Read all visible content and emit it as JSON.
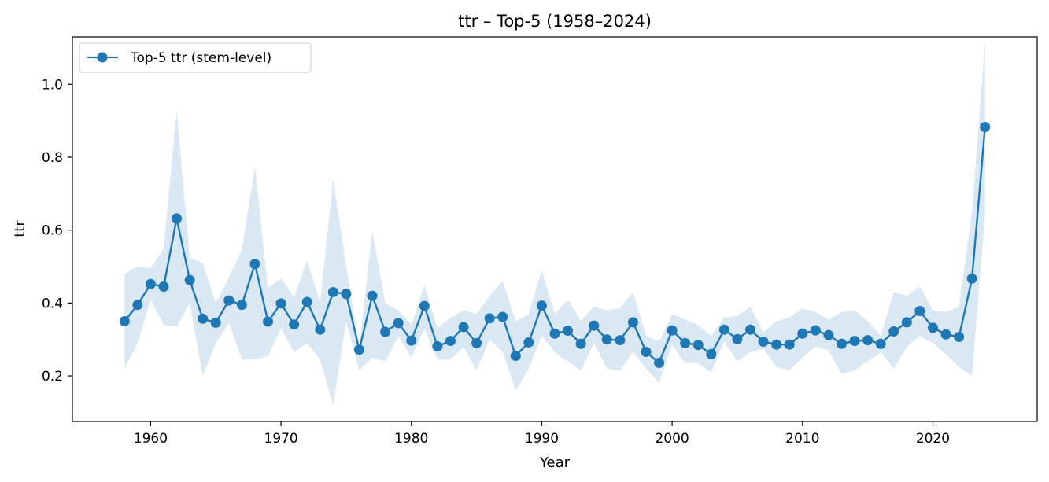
{
  "chart_data": {
    "type": "line",
    "title": "ttr – Top-5 (1958–2024)",
    "xlabel": "Year",
    "ylabel": "ttr",
    "xlim": [
      1954,
      2028
    ],
    "ylim": [
      0.075,
      1.13
    ],
    "xticks": [
      1960,
      1970,
      1980,
      1990,
      2000,
      2010,
      2020
    ],
    "yticks": [
      0.2,
      0.4,
      0.6,
      0.8,
      1.0
    ],
    "xtick_labels": [
      "1960",
      "1970",
      "1980",
      "1990",
      "2000",
      "2010",
      "2020"
    ],
    "ytick_labels": [
      "0.2",
      "0.4",
      "0.6",
      "0.8",
      "1.0"
    ],
    "grid": false,
    "legend_position": "top-left",
    "line_color": "#1f77b4",
    "band_color": "#1f77b4",
    "series": [
      {
        "name": "Top-5 ttr (stem-level)",
        "x": [
          1958,
          1959,
          1960,
          1961,
          1962,
          1963,
          1964,
          1965,
          1966,
          1967,
          1968,
          1969,
          1970,
          1971,
          1972,
          1973,
          1974,
          1975,
          1976,
          1977,
          1978,
          1979,
          1980,
          1981,
          1982,
          1983,
          1984,
          1985,
          1986,
          1987,
          1988,
          1989,
          1990,
          1991,
          1992,
          1993,
          1994,
          1995,
          1996,
          1997,
          1998,
          1999,
          2000,
          2001,
          2002,
          2003,
          2004,
          2005,
          2006,
          2007,
          2008,
          2009,
          2010,
          2011,
          2012,
          2013,
          2014,
          2015,
          2016,
          2017,
          2018,
          2019,
          2020,
          2021,
          2022,
          2023,
          2024
        ],
        "y": [
          0.35,
          0.395,
          0.452,
          0.445,
          0.632,
          0.463,
          0.357,
          0.346,
          0.407,
          0.395,
          0.507,
          0.349,
          0.399,
          0.341,
          0.403,
          0.327,
          0.43,
          0.425,
          0.272,
          0.42,
          0.321,
          0.345,
          0.297,
          0.392,
          0.281,
          0.296,
          0.334,
          0.29,
          0.358,
          0.362,
          0.255,
          0.292,
          0.393,
          0.316,
          0.324,
          0.288,
          0.338,
          0.3,
          0.298,
          0.347,
          0.266,
          0.236,
          0.325,
          0.29,
          0.285,
          0.26,
          0.327,
          0.301,
          0.327,
          0.294,
          0.286,
          0.286,
          0.316,
          0.325,
          0.312,
          0.288,
          0.296,
          0.298,
          0.288,
          0.322,
          0.347,
          0.378,
          0.332,
          0.314,
          0.307,
          0.467,
          0.883
        ],
        "upper": [
          0.48,
          0.5,
          0.495,
          0.55,
          0.93,
          0.525,
          0.51,
          0.4,
          0.47,
          0.545,
          0.775,
          0.44,
          0.468,
          0.415,
          0.518,
          0.4,
          0.74,
          0.5,
          0.28,
          0.595,
          0.4,
          0.38,
          0.34,
          0.45,
          0.33,
          0.36,
          0.38,
          0.37,
          0.42,
          0.46,
          0.35,
          0.37,
          0.49,
          0.37,
          0.41,
          0.35,
          0.39,
          0.38,
          0.385,
          0.43,
          0.31,
          0.295,
          0.37,
          0.355,
          0.34,
          0.31,
          0.36,
          0.365,
          0.39,
          0.32,
          0.35,
          0.36,
          0.385,
          0.375,
          0.355,
          0.375,
          0.38,
          0.35,
          0.31,
          0.43,
          0.42,
          0.445,
          0.38,
          0.375,
          0.39,
          0.65,
          1.12
        ],
        "lower": [
          0.22,
          0.29,
          0.41,
          0.34,
          0.335,
          0.4,
          0.2,
          0.29,
          0.345,
          0.245,
          0.245,
          0.255,
          0.33,
          0.265,
          0.29,
          0.245,
          0.12,
          0.35,
          0.215,
          0.25,
          0.24,
          0.31,
          0.25,
          0.33,
          0.245,
          0.245,
          0.28,
          0.215,
          0.3,
          0.265,
          0.16,
          0.22,
          0.31,
          0.265,
          0.24,
          0.215,
          0.29,
          0.22,
          0.215,
          0.265,
          0.22,
          0.18,
          0.285,
          0.235,
          0.235,
          0.21,
          0.295,
          0.24,
          0.265,
          0.275,
          0.225,
          0.215,
          0.25,
          0.28,
          0.27,
          0.205,
          0.215,
          0.24,
          0.265,
          0.22,
          0.28,
          0.31,
          0.29,
          0.26,
          0.225,
          0.2,
          0.645
        ]
      }
    ]
  }
}
